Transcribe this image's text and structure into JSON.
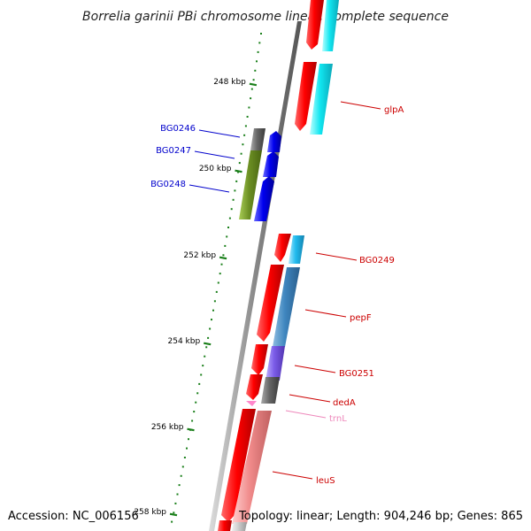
{
  "title": "Borrelia garinii PBi chromosome linear, complete sequence",
  "footer": {
    "accession": "Accession: NC_006156",
    "summary": "Topology: linear; Length: 904,246 bp; Genes: 865"
  },
  "colors": {
    "forward_strand": "#ff0000",
    "reverse_strand_blue": "#0000ee",
    "tick": "#1a7f1a",
    "backbone": "#888888",
    "label_red": "#cc0000",
    "label_blue": "#0000cc",
    "label_pink": "#ee88bb"
  },
  "scale_labels": [
    "248 kbp",
    "250 kbp",
    "252 kbp",
    "254 kbp",
    "256 kbp",
    "258 kbp"
  ],
  "genes": [
    {
      "name": "glpA",
      "color": "#cc0000"
    },
    {
      "name": "BG0246",
      "color": "#0000cc"
    },
    {
      "name": "BG0247",
      "color": "#0000cc"
    },
    {
      "name": "BG0248",
      "color": "#0000cc"
    },
    {
      "name": "BG0249",
      "color": "#cc0000"
    },
    {
      "name": "pepF",
      "color": "#cc0000"
    },
    {
      "name": "BG0251",
      "color": "#cc0000"
    },
    {
      "name": "dedA",
      "color": "#cc0000"
    },
    {
      "name": "trnL",
      "color": "#ee88bb"
    },
    {
      "name": "leuS",
      "color": "#cc0000"
    }
  ]
}
